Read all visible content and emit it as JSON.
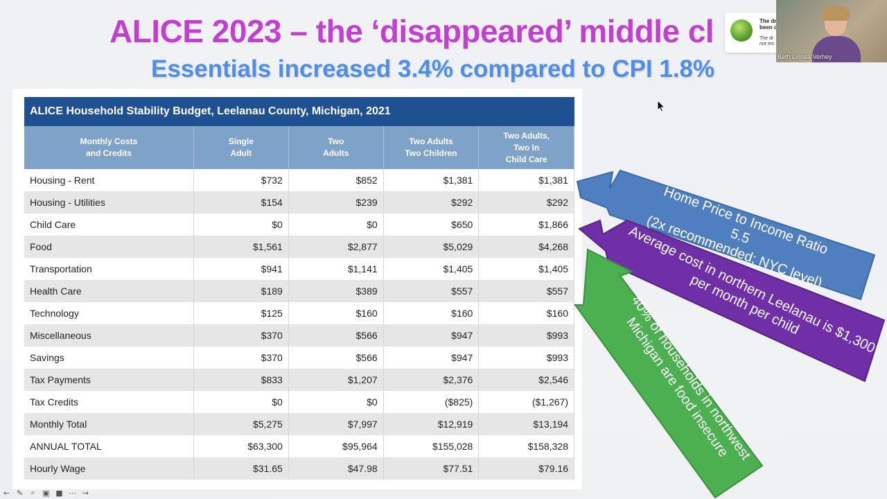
{
  "slide": {
    "title": "ALICE 2023 – the ‘disappeared’ middle cl",
    "subtitle": "Essentials increased 3.4% compared to CPI 1.8%"
  },
  "table": {
    "title": "ALICE Household Stability Budget, Leelanau County, Michigan, 2021",
    "headers": [
      "Monthly Costs\nand Credits",
      "Single\nAdult",
      "Two\nAdults",
      "Two Adults\nTwo Children",
      "Two Adults,\nTwo In\nChild Care"
    ],
    "rows": [
      {
        "label": "Housing - Rent",
        "values": [
          "$732",
          "$852",
          "$1,381",
          "$1,381"
        ]
      },
      {
        "label": "Housing - Utilities",
        "values": [
          "$154",
          "$239",
          "$292",
          "$292"
        ]
      },
      {
        "label": "Child Care",
        "values": [
          "$0",
          "$0",
          "$650",
          "$1,866"
        ]
      },
      {
        "label": "Food",
        "values": [
          "$1,561",
          "$2,877",
          "$5,029",
          "$4,268"
        ]
      },
      {
        "label": "Transportation",
        "values": [
          "$941",
          "$1,141",
          "$1,405",
          "$1,405"
        ]
      },
      {
        "label": "Health Care",
        "values": [
          "$189",
          "$389",
          "$557",
          "$557"
        ]
      },
      {
        "label": "Technology",
        "values": [
          "$125",
          "$160",
          "$160",
          "$160"
        ]
      },
      {
        "label": "Miscellaneous",
        "values": [
          "$370",
          "$566",
          "$947",
          "$993"
        ]
      },
      {
        "label": "Savings",
        "values": [
          "$370",
          "$566",
          "$947",
          "$993"
        ]
      },
      {
        "label": "Tax Payments",
        "values": [
          "$833",
          "$1,207",
          "$2,376",
          "$2,546"
        ]
      },
      {
        "label": "Tax Credits",
        "values": [
          "$0",
          "$0",
          "($825)",
          "($1,267)"
        ]
      },
      {
        "label": "Monthly Total",
        "values": [
          "$5,275",
          "$7,997",
          "$12,919",
          "$13,194"
        ]
      },
      {
        "label": "ANNUAL TOTAL",
        "values": [
          "$63,300",
          "$95,964",
          "$155,028",
          "$158,328"
        ]
      },
      {
        "label": "Hourly Wage",
        "values": [
          "$31.65",
          "$47.98",
          "$77.51",
          "$79.16"
        ]
      }
    ]
  },
  "arrows": {
    "housing": "Home Price to Income Ratio 5.5\n(2x recommended; NYC level)",
    "childcare": "Average cost in northern Leelanau is $1,300\nper month per child",
    "food": "40% of households in northwest\nMichigan are food insecure"
  },
  "colors": {
    "blue_arrow": "#4f7fbf",
    "purple_arrow": "#6f2fa6",
    "green_arrow": "#4caf50"
  },
  "video": {
    "participant_name": "Beth Linnea Verhey"
  },
  "notification": {
    "line1": "The dr\nbeen d",
    "line2": "The dr\nnot rec"
  },
  "toolbar": {
    "icons": [
      "back-icon",
      "pen-icon",
      "zoom-icon",
      "captions-icon",
      "video-icon",
      "more-icon",
      "forward-icon"
    ]
  }
}
